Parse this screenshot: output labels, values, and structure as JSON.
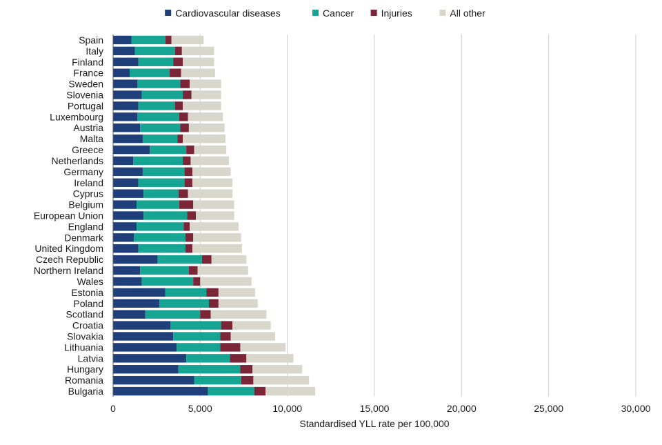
{
  "colors": {
    "Cardiovascular diseases": "#1f3f7a",
    "Cancer": "#17a593",
    "Injuries": "#7a2638",
    "All other": "#d9d6cb",
    "grid": "#d0d0d0",
    "axis": "#555555"
  },
  "chart_data": {
    "type": "bar",
    "orientation": "horizontal",
    "stacked": true,
    "title": "",
    "xlabel": "Standardised YLL rate per 100,000",
    "ylabel": "",
    "xlim": [
      0,
      30000
    ],
    "xticks": [
      0,
      5000,
      10000,
      15000,
      20000,
      25000,
      30000
    ],
    "xtick_labels": [
      "0",
      "5,000",
      "10,000",
      "15,000",
      "20,000",
      "25,000",
      "30,000"
    ],
    "grid": true,
    "legend_position": "top",
    "categories": [
      "Spain",
      "Italy",
      "Finland",
      "France",
      "Sweden",
      "Slovenia",
      "Portugal",
      "Luxembourg",
      "Austria",
      "Malta",
      "Greece",
      "Netherlands",
      "Germany",
      "Ireland",
      "Cyprus",
      "Belgium",
      "European Union",
      "England",
      "Denmark",
      "United Kingdom",
      "Czech Republic",
      "Northern Ireland",
      "Wales",
      "Estonia",
      "Poland",
      "Scotland",
      "Croatia",
      "Slovakia",
      "Lithuania",
      "Latvia",
      "Hungary",
      "Romania",
      "Bulgaria"
    ],
    "series": [
      {
        "name": "Cardiovascular diseases",
        "values": [
          1050,
          1250,
          1450,
          950,
          1400,
          1650,
          1450,
          1400,
          1550,
          1700,
          2100,
          1150,
          1700,
          1450,
          1750,
          1350,
          1750,
          1350,
          1200,
          1450,
          2550,
          1550,
          1650,
          3000,
          2650,
          1850,
          3300,
          3450,
          3650,
          4200,
          3750,
          4650,
          5450
        ]
      },
      {
        "name": "Cancer",
        "values": [
          1950,
          2300,
          2000,
          2300,
          2450,
          2350,
          2100,
          2400,
          2300,
          2000,
          2100,
          2850,
          2400,
          2650,
          2000,
          2450,
          2500,
          2700,
          2950,
          2700,
          2550,
          2800,
          2950,
          2350,
          2850,
          3150,
          2900,
          2700,
          2500,
          2500,
          3550,
          2700,
          2650
        ]
      },
      {
        "name": "Injuries",
        "values": [
          350,
          400,
          550,
          650,
          550,
          500,
          450,
          500,
          500,
          300,
          450,
          450,
          450,
          450,
          550,
          800,
          500,
          350,
          450,
          400,
          550,
          500,
          400,
          700,
          550,
          600,
          650,
          600,
          1150,
          950,
          700,
          700,
          650
        ]
      },
      {
        "name": "All other",
        "values": [
          1850,
          1850,
          1800,
          1950,
          1800,
          1700,
          2200,
          2000,
          2050,
          2450,
          1850,
          2200,
          2200,
          2300,
          2550,
          2350,
          2200,
          2800,
          2750,
          2850,
          2000,
          2900,
          2950,
          2100,
          2250,
          3200,
          2200,
          2550,
          2600,
          2700,
          2850,
          3200,
          2850
        ]
      }
    ]
  }
}
